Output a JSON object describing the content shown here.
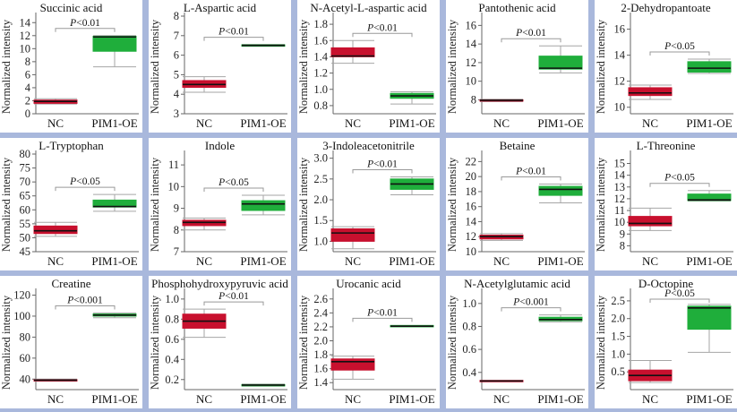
{
  "figure": {
    "ylabel": "Normalized intensity",
    "categories": [
      "NC",
      "PIM1-OE"
    ],
    "colors": {
      "NC": "#c8102e",
      "PIM1-OE": "#1fae3b"
    }
  },
  "chart_data": [
    {
      "type": "box",
      "title": "Succinic acid",
      "p_prefix": "P",
      "p_rest": "<0.01",
      "ylim": [
        0,
        15
      ],
      "ticks": [
        0,
        2,
        4,
        6,
        8,
        10,
        12,
        14
      ],
      "boxes": [
        {
          "category": "NC",
          "min": 1.5,
          "q1": 1.6,
          "median": 1.9,
          "q3": 2.1,
          "max": 2.3
        },
        {
          "category": "PIM1-OE",
          "min": 7.2,
          "q1": 9.6,
          "median": 11.8,
          "q3": 11.9,
          "max": 12.0
        }
      ]
    },
    {
      "type": "box",
      "title": "L-Aspartic acid",
      "p_prefix": "P",
      "p_rest": "<0.01",
      "ylim": [
        3,
        8
      ],
      "ticks": [
        3,
        4,
        5,
        6,
        7,
        8
      ],
      "boxes": [
        {
          "category": "NC",
          "min": 4.1,
          "q1": 4.35,
          "median": 4.5,
          "q3": 4.7,
          "max": 4.9
        },
        {
          "category": "PIM1-OE",
          "min": 6.45,
          "q1": 6.47,
          "median": 6.5,
          "q3": 6.53,
          "max": 6.55
        }
      ]
    },
    {
      "type": "box",
      "title": "N-Acetyl-L-aspartic acid",
      "p_prefix": "P",
      "p_rest": "<0.01",
      "ylim": [
        0.7,
        1.9
      ],
      "ticks": [
        0.8,
        1.0,
        1.2,
        1.4,
        1.6,
        1.8
      ],
      "boxes": [
        {
          "category": "NC",
          "min": 1.32,
          "q1": 1.4,
          "median": 1.41,
          "q3": 1.51,
          "max": 1.6
        },
        {
          "category": "PIM1-OE",
          "min": 0.82,
          "q1": 0.89,
          "median": 0.92,
          "q3": 0.95,
          "max": 0.97
        }
      ]
    },
    {
      "type": "box",
      "title": "Pantothenic acid",
      "p_prefix": "P",
      "p_rest": "<0.01",
      "ylim": [
        6.5,
        17
      ],
      "ticks": [
        8,
        10,
        12,
        14,
        16
      ],
      "boxes": [
        {
          "category": "NC",
          "min": 7.8,
          "q1": 7.9,
          "median": 7.95,
          "q3": 8.0,
          "max": 8.05
        },
        {
          "category": "PIM1-OE",
          "min": 10.9,
          "q1": 11.3,
          "median": 11.4,
          "q3": 12.7,
          "max": 13.8
        }
      ]
    },
    {
      "type": "box",
      "title": "2-Dehydropantoate",
      "p_prefix": "P",
      "p_rest": "<0.05",
      "ylim": [
        9.5,
        17
      ],
      "ticks": [
        10,
        12,
        14,
        16
      ],
      "boxes": [
        {
          "category": "NC",
          "min": 10.6,
          "q1": 10.9,
          "median": 11.1,
          "q3": 11.5,
          "max": 11.7
        },
        {
          "category": "PIM1-OE",
          "min": 12.6,
          "q1": 12.7,
          "median": 13.0,
          "q3": 13.5,
          "max": 13.7
        }
      ]
    },
    {
      "type": "box",
      "title": "L-Tryptophan",
      "p_prefix": "P",
      "p_rest": "<0.05",
      "ylim": [
        45,
        80
      ],
      "ticks": [
        45,
        50,
        55,
        60,
        65,
        70,
        75,
        80
      ],
      "boxes": [
        {
          "category": "NC",
          "min": 50.5,
          "q1": 51.5,
          "median": 52.5,
          "q3": 54.2,
          "max": 55.5
        },
        {
          "category": "PIM1-OE",
          "min": 59.5,
          "q1": 61.0,
          "median": 61.2,
          "q3": 63.5,
          "max": 65.5
        }
      ]
    },
    {
      "type": "box",
      "title": "Indole",
      "p_prefix": "P",
      "p_rest": "<0.05",
      "ylim": [
        7,
        11.5
      ],
      "ticks": [
        7,
        8,
        9,
        10,
        11
      ],
      "boxes": [
        {
          "category": "NC",
          "min": 8.0,
          "q1": 8.2,
          "median": 8.35,
          "q3": 8.45,
          "max": 8.55
        },
        {
          "category": "PIM1-OE",
          "min": 8.7,
          "q1": 8.9,
          "median": 9.2,
          "q3": 9.35,
          "max": 9.6
        }
      ]
    },
    {
      "type": "box",
      "title": "3-Indoleacetonitrile",
      "p_prefix": "P",
      "p_rest": "<0.01",
      "ylim": [
        0.75,
        3.1
      ],
      "ticks": [
        1.0,
        1.5,
        2.0,
        2.5,
        3.0
      ],
      "boxes": [
        {
          "category": "NC",
          "min": 0.82,
          "q1": 1.0,
          "median": 1.2,
          "q3": 1.3,
          "max": 1.35
        },
        {
          "category": "PIM1-OE",
          "min": 2.12,
          "q1": 2.25,
          "median": 2.38,
          "q3": 2.5,
          "max": 2.55
        }
      ]
    },
    {
      "type": "box",
      "title": "Betaine",
      "p_prefix": "P",
      "p_rest": "<0.01",
      "ylim": [
        10,
        23
      ],
      "ticks": [
        10,
        12,
        14,
        16,
        18,
        20,
        22
      ],
      "boxes": [
        {
          "category": "NC",
          "min": 11.5,
          "q1": 11.7,
          "median": 12.0,
          "q3": 12.2,
          "max": 12.4
        },
        {
          "category": "PIM1-OE",
          "min": 16.5,
          "q1": 17.5,
          "median": 18.3,
          "q3": 18.7,
          "max": 19.0
        }
      ]
    },
    {
      "type": "box",
      "title": "L-Threonine",
      "p_prefix": "P",
      "p_rest": "<0.05",
      "ylim": [
        7.5,
        15.8
      ],
      "ticks": [
        8,
        9,
        10,
        11,
        12,
        13,
        14,
        15
      ],
      "boxes": [
        {
          "category": "NC",
          "min": 9.3,
          "q1": 9.7,
          "median": 9.9,
          "q3": 10.5,
          "max": 11.2
        },
        {
          "category": "PIM1-OE",
          "min": 11.8,
          "q1": 11.85,
          "median": 11.9,
          "q3": 12.4,
          "max": 12.7
        }
      ]
    },
    {
      "type": "box",
      "title": "Creatine",
      "p_prefix": "P",
      "p_rest": "<0.001",
      "ylim": [
        30,
        123
      ],
      "ticks": [
        40,
        60,
        80,
        100,
        120
      ],
      "boxes": [
        {
          "category": "NC",
          "min": 38.0,
          "q1": 38.5,
          "median": 39.0,
          "q3": 39.5,
          "max": 40.0
        },
        {
          "category": "PIM1-OE",
          "min": 98.5,
          "q1": 100.0,
          "median": 101.0,
          "q3": 102.0,
          "max": 103.0
        }
      ]
    },
    {
      "type": "box",
      "title": "Phosphohydroxypyruvic acid",
      "p_prefix": "P",
      "p_rest": "<0.01",
      "ylim": [
        0.1,
        1.07
      ],
      "ticks": [
        0.2,
        0.4,
        0.6,
        0.8,
        1.0
      ],
      "boxes": [
        {
          "category": "NC",
          "min": 0.62,
          "q1": 0.71,
          "median": 0.78,
          "q3": 0.85,
          "max": 0.9
        },
        {
          "category": "PIM1-OE",
          "min": 0.135,
          "q1": 0.14,
          "median": 0.145,
          "q3": 0.15,
          "max": 0.155
        }
      ]
    },
    {
      "type": "box",
      "title": "Urocanic acid",
      "p_prefix": "P",
      "p_rest": "<0.01",
      "ylim": [
        1.3,
        2.7
      ],
      "ticks": [
        1.4,
        1.6,
        1.8,
        2.0,
        2.2,
        2.4,
        2.6
      ],
      "boxes": [
        {
          "category": "NC",
          "min": 1.45,
          "q1": 1.58,
          "median": 1.7,
          "q3": 1.74,
          "max": 1.78
        },
        {
          "category": "PIM1-OE",
          "min": 2.2,
          "q1": 2.2,
          "median": 2.21,
          "q3": 2.22,
          "max": 2.22
        }
      ]
    },
    {
      "type": "box",
      "title": "N-Acetylglutamic acid",
      "p_prefix": "P",
      "p_rest": "<0.001",
      "ylim": [
        0.25,
        1.1
      ],
      "ticks": [
        0.4,
        0.6,
        0.8,
        1.0
      ],
      "boxes": [
        {
          "category": "NC",
          "min": 0.32,
          "q1": 0.32,
          "median": 0.325,
          "q3": 0.33,
          "max": 0.33
        },
        {
          "category": "PIM1-OE",
          "min": 0.84,
          "q1": 0.85,
          "median": 0.86,
          "q3": 0.88,
          "max": 0.9
        }
      ]
    },
    {
      "type": "box",
      "title": "D-Octopine",
      "p_prefix": "P",
      "p_rest": "<0.05",
      "ylim": [
        0,
        2.75
      ],
      "ticks": [
        0.5,
        1.0,
        1.5,
        2.0,
        2.5
      ],
      "boxes": [
        {
          "category": "NC",
          "min": 0.2,
          "q1": 0.25,
          "median": 0.4,
          "q3": 0.55,
          "max": 0.82
        },
        {
          "category": "PIM1-OE",
          "min": 1.05,
          "q1": 1.7,
          "median": 2.3,
          "q3": 2.35,
          "max": 2.4
        }
      ]
    }
  ]
}
